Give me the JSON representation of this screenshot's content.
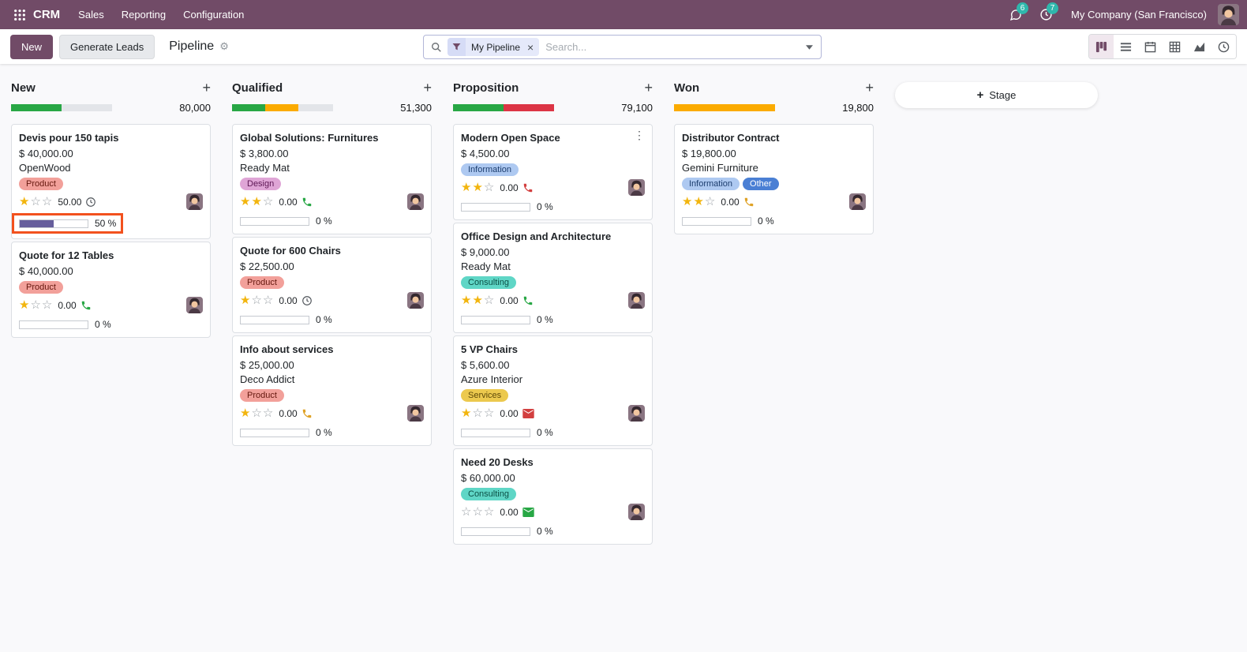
{
  "palette": {
    "brand_purple": "#714B67",
    "progress_green": "#28a745",
    "progress_yellow": "#fbab00",
    "progress_red": "#dc3545",
    "card_progress_purple": "#665e9c",
    "badge_teal": "#2fb7ac",
    "annotation_orange": "#f2511e"
  },
  "topbar": {
    "brand": "CRM",
    "menus": [
      "Sales",
      "Reporting",
      "Configuration"
    ],
    "messages_count": "6",
    "activities_count": "7",
    "company": "My Company (San Francisco)"
  },
  "control": {
    "new_button": "New",
    "generate_leads_button": "Generate Leads",
    "page_title": "Pipeline",
    "search_facet": "My Pipeline",
    "search_placeholder": "Search...",
    "stage_button": "Stage"
  },
  "columns": [
    {
      "name": "New",
      "total": "80,000",
      "segments": [
        {
          "color": "green",
          "pct": 50
        }
      ],
      "cards": [
        {
          "title": "Devis pour 150 tapis",
          "amount": "$ 40,000.00",
          "partner": "OpenWood",
          "tags": [
            "Product"
          ],
          "stars": 1,
          "counter": "50.00",
          "icon": "clock",
          "progress_pct": 50,
          "progress_label": "50 %"
        },
        {
          "title": "Quote for 12 Tables",
          "amount": "$ 40,000.00",
          "tags": [
            "Product"
          ],
          "stars": 1,
          "counter": "0.00",
          "icon": "phone-green",
          "progress_pct": 0,
          "progress_label": "0 %"
        }
      ]
    },
    {
      "name": "Qualified",
      "total": "51,300",
      "segments": [
        {
          "color": "green",
          "pct": 33
        },
        {
          "color": "yellow",
          "pct": 33
        }
      ],
      "cards": [
        {
          "title": "Global Solutions: Furnitures",
          "amount": "$ 3,800.00",
          "partner": "Ready Mat",
          "tags": [
            "Design"
          ],
          "stars": 2,
          "counter": "0.00",
          "icon": "phone-green",
          "progress_pct": 0,
          "progress_label": "0 %"
        },
        {
          "title": "Quote for 600 Chairs",
          "amount": "$ 22,500.00",
          "tags": [
            "Product"
          ],
          "stars": 1,
          "counter": "0.00",
          "icon": "clock",
          "progress_pct": 0,
          "progress_label": "0 %"
        },
        {
          "title": "Info about services",
          "amount": "$ 25,000.00",
          "partner": "Deco Addict",
          "tags": [
            "Product"
          ],
          "stars": 1,
          "counter": "0.00",
          "icon": "phone-orange",
          "progress_pct": 0,
          "progress_label": "0 %"
        }
      ]
    },
    {
      "name": "Proposition",
      "total": "79,100",
      "segments": [
        {
          "color": "green",
          "pct": 50
        },
        {
          "color": "red",
          "pct": 50
        }
      ],
      "cards": [
        {
          "title": "Modern Open Space",
          "amount": "$ 4,500.00",
          "tags": [
            "Information"
          ],
          "stars": 2,
          "counter": "0.00",
          "icon": "phone-red",
          "progress_pct": 0,
          "progress_label": "0 %",
          "kebab": true
        },
        {
          "title": "Office Design and Architecture",
          "amount": "$ 9,000.00",
          "partner": "Ready Mat",
          "tags": [
            "Consulting"
          ],
          "stars": 2,
          "counter": "0.00",
          "icon": "phone-green",
          "progress_pct": 0,
          "progress_label": "0 %"
        },
        {
          "title": "5 VP Chairs",
          "amount": "$ 5,600.00",
          "partner": "Azure Interior",
          "tags": [
            "Services"
          ],
          "stars": 1,
          "counter": "0.00",
          "icon": "envelope-red",
          "progress_pct": 0,
          "progress_label": "0 %"
        },
        {
          "title": "Need 20 Desks",
          "amount": "$ 60,000.00",
          "tags": [
            "Consulting"
          ],
          "stars": 0,
          "counter": "0.00",
          "icon": "envelope-green",
          "progress_pct": 0,
          "progress_label": "0 %"
        }
      ]
    },
    {
      "name": "Won",
      "total": "19,800",
      "segments": [
        {
          "color": "yellow",
          "pct": 100
        }
      ],
      "cards": [
        {
          "title": "Distributor Contract",
          "amount": "$ 19,800.00",
          "partner": "Gemini Furniture",
          "tags": [
            "Information",
            "Other"
          ],
          "stars": 2,
          "counter": "0.00",
          "icon": "phone-orange",
          "progress_pct": 0,
          "progress_label": "0 %"
        }
      ]
    }
  ]
}
